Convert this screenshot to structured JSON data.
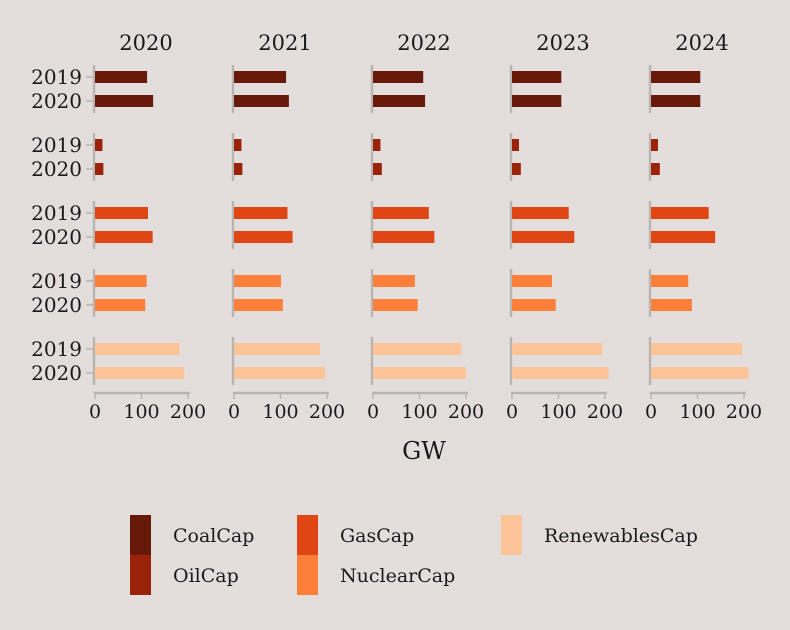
{
  "chart_data": {
    "type": "bar",
    "orientation": "horizontal",
    "facets": [
      "2020",
      "2021",
      "2022",
      "2023",
      "2024"
    ],
    "groups": [
      "CoalCap",
      "OilCap",
      "GasCap",
      "NuclearCap",
      "RenewablesCap"
    ],
    "categories": [
      "2019",
      "2020"
    ],
    "xlabel": "GW",
    "xlim": [
      0,
      200
    ],
    "xticks": [
      "0",
      "100",
      "200"
    ],
    "legend_position": "bottom",
    "grid": false,
    "colors": {
      "CoalCap": "#67190a",
      "OilCap": "#9a2309",
      "GasCap": "#e04614",
      "NuclearCap": "#fd7f39",
      "RenewablesCap": "#fdc597"
    },
    "legend": [
      "CoalCap",
      "GasCap",
      "RenewablesCap",
      "OilCap",
      "NuclearCap"
    ],
    "values": {
      "2020": {
        "CoalCap": [
          112,
          125
        ],
        "OilCap": [
          16,
          18
        ],
        "GasCap": [
          114,
          124
        ],
        "NuclearCap": [
          111,
          108
        ],
        "RenewablesCap": [
          182,
          192
        ]
      },
      "2021": {
        "CoalCap": [
          112,
          118
        ],
        "OilCap": [
          16,
          18
        ],
        "GasCap": [
          115,
          126
        ],
        "NuclearCap": [
          101,
          105
        ],
        "RenewablesCap": [
          185,
          196
        ]
      },
      "2022": {
        "CoalCap": [
          108,
          112
        ],
        "OilCap": [
          16,
          19
        ],
        "GasCap": [
          120,
          132
        ],
        "NuclearCap": [
          90,
          96
        ],
        "RenewablesCap": [
          190,
          200
        ]
      },
      "2023": {
        "CoalCap": [
          106,
          106
        ],
        "OilCap": [
          15,
          19
        ],
        "GasCap": [
          122,
          134
        ],
        "NuclearCap": [
          86,
          94
        ],
        "RenewablesCap": [
          194,
          208
        ]
      },
      "2024": {
        "CoalCap": [
          106,
          106
        ],
        "OilCap": [
          15,
          19
        ],
        "GasCap": [
          124,
          138
        ],
        "NuclearCap": [
          80,
          88
        ],
        "RenewablesCap": [
          196,
          210
        ]
      }
    }
  }
}
